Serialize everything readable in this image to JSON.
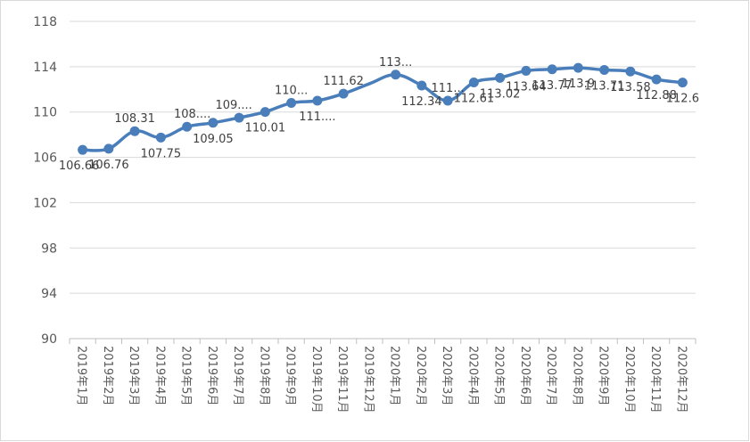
{
  "chart_data": {
    "type": "line",
    "title": "",
    "xlabel": "",
    "ylabel": "",
    "ylim": [
      90,
      118
    ],
    "y_ticks": [
      "90",
      "94",
      "98",
      "102",
      "106",
      "110",
      "114",
      "118"
    ],
    "grid": "horizontal",
    "legend": "none",
    "categories": [
      "2019年1月",
      "2019年2月",
      "2019年3月",
      "2019年4月",
      "2019年5月",
      "2019年6月",
      "2019年7月",
      "2019年8月",
      "2019年9月",
      "2019年10月",
      "2019年11月",
      "2019年12月",
      "2020年1月",
      "2020年2月",
      "2020年3月",
      "2020年4月",
      "2020年5月",
      "2020年6月",
      "2020年7月",
      "2020年8月",
      "2020年9月",
      "2020年10月",
      "2020年11月",
      "2020年12月"
    ],
    "series": [
      {
        "color": "#4a7ebb",
        "values": [
          106.66,
          106.76,
          108.31,
          107.75,
          108.7,
          109.05,
          109.5,
          110.01,
          110.8,
          111.0,
          111.62,
          112.5,
          113.3,
          112.34,
          111.0,
          112.61,
          113.02,
          113.64,
          113.77,
          113.9,
          113.71,
          113.58,
          112.88,
          112.6
        ],
        "data_labels": [
          "106.66",
          "106.76",
          "108.31",
          "107.75",
          "108....",
          "109.05",
          "109....",
          "110.01",
          "110...",
          "111....",
          "111.62",
          "",
          "113...",
          "112.34",
          "111...",
          "112.61",
          "113.02",
          "113.64",
          "113.77",
          "113.9",
          "113.71",
          "113.58",
          "112.88",
          "112.6"
        ]
      }
    ]
  }
}
